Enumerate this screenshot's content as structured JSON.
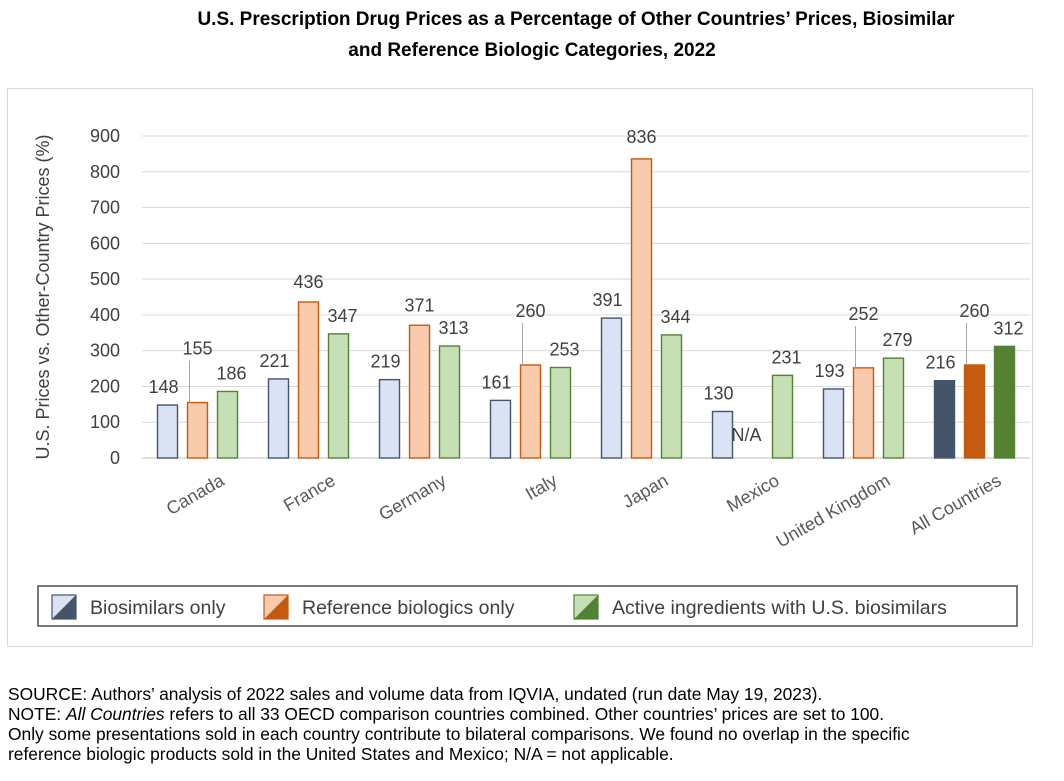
{
  "title_line1": "U.S. Prescription Drug Prices as a Percentage of Other Countries’ Prices, Biosimilar",
  "title_line2": "and Reference Biologic Categories, 2022",
  "chart_data": {
    "type": "bar",
    "title": "U.S. Prescription Drug Prices as a Percentage of Other Countries’ Prices, Biosimilar and Reference Biologic Categories, 2022",
    "ylabel": "U.S. Prices vs. Other-Country Prices (%)",
    "xlabel": "",
    "ylim": [
      0,
      900
    ],
    "yticks": [
      0,
      100,
      200,
      300,
      400,
      500,
      600,
      700,
      800,
      900
    ],
    "grid": true,
    "legend_position": "bottom",
    "categories": [
      "Canada",
      "France",
      "Germany",
      "Italy",
      "Japan",
      "Mexico",
      "United Kingdom",
      "All Countries"
    ],
    "series": [
      {
        "name": "Biosimilars only",
        "values": [
          148,
          221,
          219,
          161,
          391,
          130,
          193,
          216
        ],
        "color": "#dae3f3",
        "stroke": "#44546a",
        "highlight_color": "#44546a"
      },
      {
        "name": "Reference biologics only",
        "values": [
          155,
          436,
          371,
          260,
          836,
          null,
          252,
          260
        ],
        "color": "#f8cbad",
        "stroke": "#c55a11",
        "highlight_color": "#c55a11"
      },
      {
        "name": "Active ingredients with U.S. biosimilars",
        "values": [
          186,
          347,
          313,
          253,
          344,
          231,
          279,
          312
        ],
        "color": "#c5e0b4",
        "stroke": "#548235",
        "highlight_color": "#548235"
      }
    ],
    "na_label": "N/A"
  },
  "footer": {
    "source": "SOURCE: Authors’ analysis of 2022 sales and volume data from IQVIA, undated (run date May 19, 2023).",
    "note_prefix": "NOTE: ",
    "note_italic": "All Countries",
    "note_rest": " refers to all 33 OECD comparison countries combined. Other countries’ prices are set to 100.",
    "line3": "Only some presentations sold in each country contribute to bilateral comparisons. We found no overlap in the specific",
    "line4": "reference biologic products sold in the United States and Mexico; N/A = not applicable."
  }
}
